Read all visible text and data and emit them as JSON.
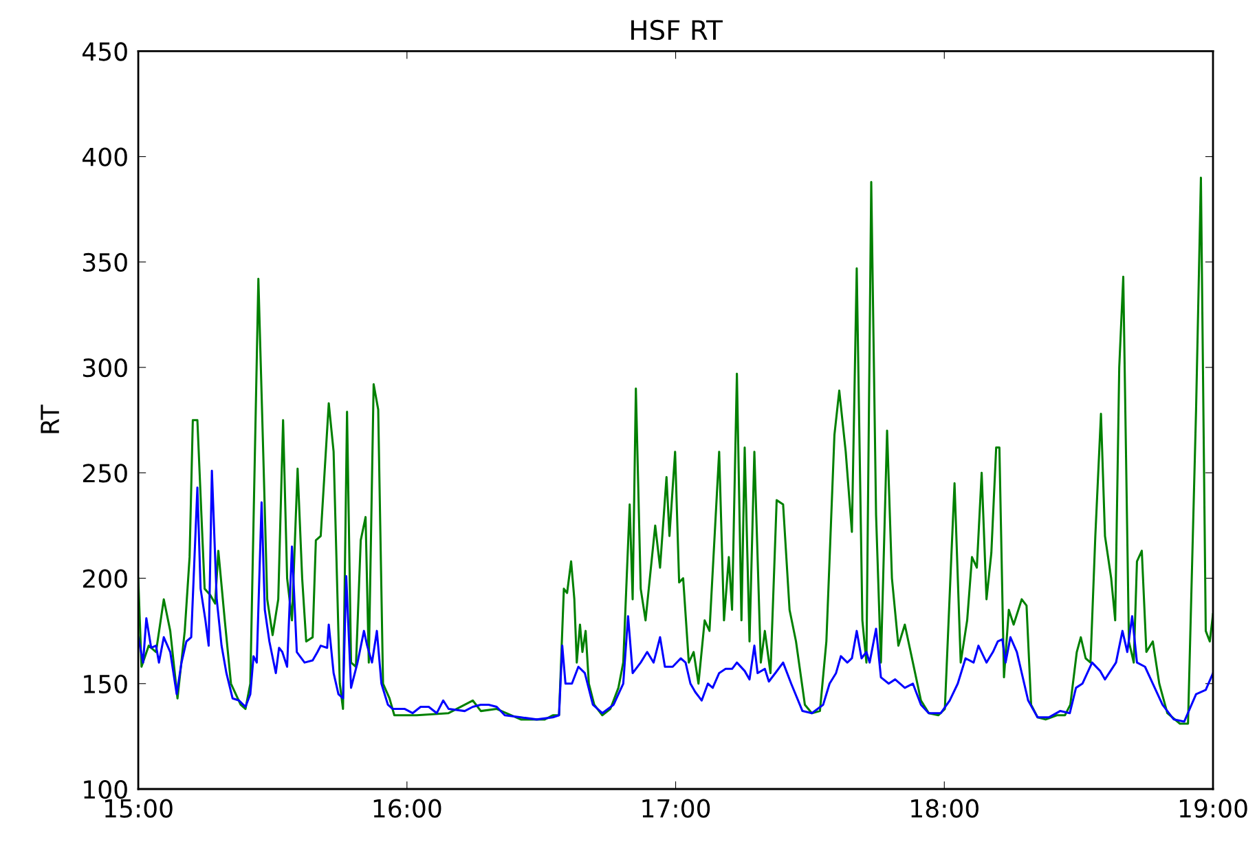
{
  "chart_data": {
    "type": "line",
    "title": "HSF RT",
    "ylabel": "RT",
    "xlim": [
      15,
      19
    ],
    "ylim": [
      100,
      450
    ],
    "xticks": [
      {
        "value": 15,
        "label": "15:00"
      },
      {
        "value": 16,
        "label": "16:00"
      },
      {
        "value": 17,
        "label": "17:00"
      },
      {
        "value": 18,
        "label": "18:00"
      },
      {
        "value": 19,
        "label": "19:00"
      }
    ],
    "yticks": [
      100,
      150,
      200,
      250,
      300,
      350,
      400,
      450
    ],
    "grid": false,
    "marker": "none",
    "line_style": "solid",
    "series": [
      {
        "color": "#008000",
        "x": [
          15.0,
          15.012,
          15.039,
          15.066,
          15.095,
          15.119,
          15.146,
          15.173,
          15.191,
          15.203,
          15.22,
          15.235,
          15.247,
          15.268,
          15.286,
          15.298,
          15.322,
          15.345,
          15.363,
          15.381,
          15.399,
          15.417,
          15.447,
          15.465,
          15.48,
          15.5,
          15.521,
          15.539,
          15.554,
          15.572,
          15.593,
          15.61,
          15.625,
          15.649,
          15.661,
          15.679,
          15.709,
          15.727,
          15.75,
          15.762,
          15.777,
          15.792,
          15.81,
          15.828,
          15.846,
          15.858,
          15.876,
          15.893,
          15.911,
          15.935,
          15.953,
          16.036,
          16.155,
          16.245,
          16.275,
          16.334,
          16.424,
          16.513,
          16.543,
          16.566,
          16.584,
          16.596,
          16.611,
          16.623,
          16.632,
          16.644,
          16.653,
          16.665,
          16.677,
          16.697,
          16.727,
          16.757,
          16.787,
          16.805,
          16.829,
          16.84,
          16.852,
          16.87,
          16.888,
          16.924,
          16.942,
          16.966,
          16.977,
          16.998,
          17.013,
          17.028,
          17.049,
          17.067,
          17.085,
          17.108,
          17.126,
          17.162,
          17.18,
          17.198,
          17.21,
          17.228,
          17.245,
          17.257,
          17.275,
          17.293,
          17.317,
          17.332,
          17.353,
          17.376,
          17.4,
          17.424,
          17.448,
          17.481,
          17.507,
          17.537,
          17.561,
          17.591,
          17.609,
          17.633,
          17.656,
          17.674,
          17.695,
          17.71,
          17.728,
          17.746,
          17.764,
          17.787,
          17.805,
          17.829,
          17.853,
          17.883,
          17.913,
          17.942,
          17.978,
          18.002,
          18.026,
          18.038,
          18.061,
          18.085,
          18.103,
          18.121,
          18.139,
          18.157,
          18.175,
          18.193,
          18.205,
          18.222,
          18.24,
          18.258,
          18.288,
          18.306,
          18.323,
          18.347,
          18.377,
          18.419,
          18.449,
          18.469,
          18.493,
          18.508,
          18.526,
          18.544,
          18.562,
          18.583,
          18.598,
          18.621,
          18.636,
          18.651,
          18.666,
          18.687,
          18.705,
          18.717,
          18.735,
          18.752,
          18.776,
          18.8,
          18.83,
          18.877,
          18.907,
          18.937,
          18.955,
          18.973,
          18.988,
          19.0
        ],
        "values": [
          200,
          158,
          168,
          165,
          190,
          175,
          143,
          175,
          210,
          275,
          275,
          230,
          195,
          192,
          188,
          213,
          180,
          150,
          145,
          140,
          138,
          150,
          342,
          260,
          190,
          173,
          190,
          275,
          200,
          180,
          252,
          200,
          170,
          172,
          218,
          220,
          283,
          260,
          150,
          138,
          279,
          160,
          158,
          218,
          229,
          160,
          292,
          280,
          150,
          143,
          135,
          135,
          136,
          142,
          137,
          138,
          133,
          133,
          135,
          135,
          195,
          193,
          208,
          190,
          160,
          178,
          165,
          175,
          150,
          140,
          135,
          138,
          148,
          160,
          235,
          190,
          290,
          195,
          180,
          225,
          205,
          248,
          220,
          260,
          198,
          200,
          160,
          165,
          150,
          180,
          175,
          260,
          180,
          210,
          185,
          297,
          180,
          262,
          170,
          260,
          160,
          175,
          155,
          237,
          235,
          185,
          170,
          140,
          136,
          137,
          170,
          268,
          289,
          260,
          222,
          347,
          180,
          160,
          388,
          230,
          160,
          270,
          200,
          168,
          178,
          160,
          142,
          136,
          135,
          138,
          210,
          245,
          160,
          180,
          210,
          205,
          250,
          190,
          212,
          262,
          262,
          153,
          185,
          178,
          190,
          187,
          140,
          134,
          133,
          135,
          135,
          140,
          165,
          172,
          162,
          160,
          220,
          278,
          220,
          200,
          180,
          300,
          343,
          170,
          160,
          208,
          213,
          165,
          170,
          150,
          136,
          131,
          131,
          280,
          390,
          175,
          170,
          183
        ]
      },
      {
        "color": "#0000ff",
        "x": [
          15.0,
          15.018,
          15.03,
          15.048,
          15.066,
          15.077,
          15.095,
          15.119,
          15.143,
          15.161,
          15.179,
          15.197,
          15.22,
          15.232,
          15.25,
          15.262,
          15.274,
          15.292,
          15.31,
          15.328,
          15.351,
          15.375,
          15.399,
          15.417,
          15.429,
          15.441,
          15.459,
          15.471,
          15.488,
          15.512,
          15.524,
          15.536,
          15.554,
          15.572,
          15.59,
          15.619,
          15.649,
          15.667,
          15.679,
          15.703,
          15.709,
          15.727,
          15.745,
          15.762,
          15.774,
          15.792,
          15.816,
          15.84,
          15.852,
          15.87,
          15.888,
          15.905,
          15.929,
          15.947,
          15.992,
          16.021,
          16.051,
          16.081,
          16.111,
          16.135,
          16.155,
          16.215,
          16.245,
          16.275,
          16.304,
          16.334,
          16.364,
          16.424,
          16.483,
          16.543,
          16.566,
          16.578,
          16.59,
          16.614,
          16.638,
          16.662,
          16.692,
          16.727,
          16.769,
          16.805,
          16.823,
          16.84,
          16.87,
          16.894,
          16.918,
          16.942,
          16.96,
          16.989,
          17.019,
          17.037,
          17.055,
          17.073,
          17.097,
          17.12,
          17.138,
          17.162,
          17.186,
          17.21,
          17.228,
          17.257,
          17.275,
          17.293,
          17.305,
          17.332,
          17.347,
          17.371,
          17.4,
          17.43,
          17.472,
          17.507,
          17.549,
          17.573,
          17.597,
          17.615,
          17.639,
          17.656,
          17.674,
          17.692,
          17.71,
          17.722,
          17.746,
          17.764,
          17.793,
          17.817,
          17.853,
          17.883,
          17.913,
          17.942,
          17.987,
          18.02,
          18.05,
          18.079,
          18.109,
          18.127,
          18.157,
          18.181,
          18.199,
          18.216,
          18.228,
          18.246,
          18.27,
          18.312,
          18.347,
          18.389,
          18.431,
          18.467,
          18.49,
          18.514,
          18.55,
          18.58,
          18.598,
          18.639,
          18.663,
          18.681,
          18.699,
          18.717,
          18.747,
          18.776,
          18.812,
          18.854,
          18.893,
          18.937,
          18.973,
          19.0
        ],
        "values": [
          172,
          160,
          181,
          167,
          168,
          160,
          172,
          165,
          145,
          160,
          170,
          172,
          243,
          195,
          180,
          168,
          251,
          190,
          168,
          155,
          143,
          142,
          139,
          145,
          163,
          160,
          236,
          185,
          170,
          155,
          167,
          165,
          158,
          215,
          165,
          160,
          161,
          165,
          168,
          167,
          178,
          155,
          145,
          143,
          201,
          148,
          160,
          175,
          168,
          160,
          175,
          150,
          140,
          138,
          138,
          136,
          139,
          139,
          136,
          142,
          138,
          137,
          139,
          140,
          140,
          139,
          135,
          134,
          133,
          134,
          135,
          168,
          150,
          150,
          158,
          155,
          140,
          136,
          140,
          150,
          182,
          155,
          160,
          165,
          160,
          172,
          158,
          158,
          162,
          160,
          150,
          146,
          142,
          150,
          148,
          155,
          157,
          157,
          160,
          156,
          152,
          168,
          155,
          157,
          151,
          155,
          160,
          150,
          137,
          136,
          140,
          150,
          155,
          163,
          160,
          162,
          175,
          162,
          165,
          160,
          176,
          153,
          150,
          152,
          148,
          150,
          140,
          136,
          136,
          142,
          150,
          162,
          160,
          168,
          160,
          165,
          170,
          171,
          160,
          172,
          165,
          142,
          134,
          134,
          137,
          136,
          148,
          150,
          160,
          156,
          152,
          160,
          175,
          165,
          182,
          160,
          158,
          150,
          140,
          133,
          132,
          145,
          147,
          155
        ]
      }
    ]
  }
}
